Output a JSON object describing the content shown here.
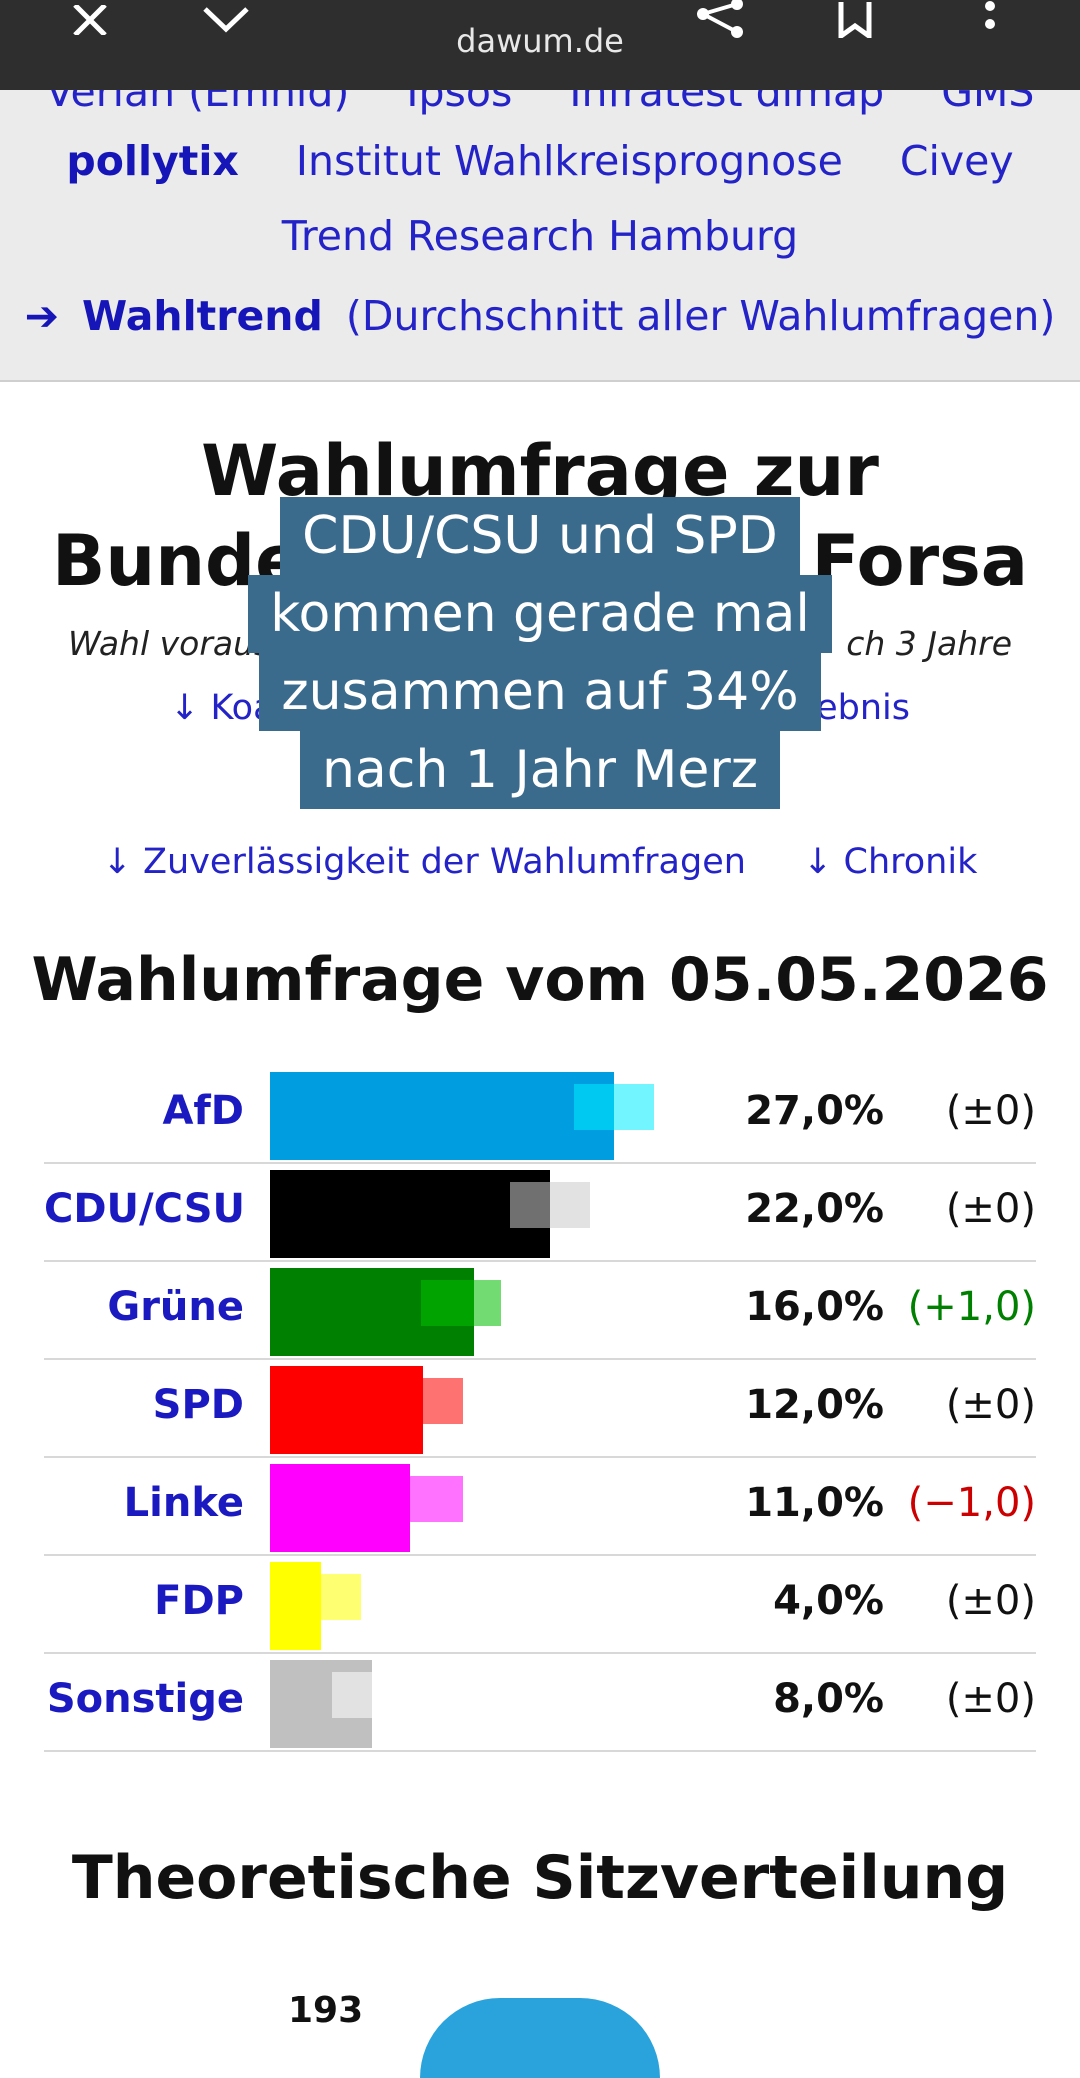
{
  "browser": {
    "url": "dawum.de",
    "icons": [
      "close-icon",
      "download-icon",
      "share-icon",
      "bookmark-icon",
      "more-icon"
    ]
  },
  "institutes": {
    "row0": [
      "Verian (Emnid)",
      "Ipsos",
      "Infratest dimap",
      "GMS"
    ],
    "row1": [
      "pollytix",
      "Institut Wahlkreisprognose",
      "Civey"
    ],
    "row2": [
      "Trend Research Hamburg"
    ],
    "wahltrend_arrow": "➔",
    "wahltrend_label": "Wahltrend",
    "wahltrend_desc": "(Durchschnitt aller Wahlumfragen)"
  },
  "page": {
    "title_line1": "Wahlumfrage zur",
    "title_line2_left": "Bundes",
    "title_line2_right": "Forsa",
    "subtitle_left": "Wahl voraus",
    "subtitle_right": "ch 3 Jahre",
    "nav_left": "↓ Koaliti",
    "nav_right": "gebnis",
    "nav2_left": "↓ Zuverlässigkeit der Wahlumfragen",
    "nav2_right": "↓ Chronik"
  },
  "overlay": {
    "lines": [
      "CDU/CSU und SPD",
      "kommen gerade mal",
      "zusammen auf 34%",
      "nach 1 Jahr Merz"
    ]
  },
  "poll": {
    "heading": "Wahlumfrage vom 05.05.2026",
    "chart_data": {
      "type": "bar",
      "categories": [
        "AfD",
        "CDU/CSU",
        "Grüne",
        "SPD",
        "Linke",
        "FDP",
        "Sonstige"
      ],
      "values": [
        27.0,
        22.0,
        16.0,
        12.0,
        11.0,
        4.0,
        8.0
      ],
      "previous": [
        27.0,
        22.0,
        15.0,
        12.0,
        12.0,
        4.0,
        8.0
      ],
      "percent_labels": [
        "27,0%",
        "22,0%",
        "16,0%",
        "12,0%",
        "11,0%",
        "4,0%",
        "8,0%"
      ],
      "change_labels": [
        "(±0)",
        "(±0)",
        "(+1,0)",
        "(±0)",
        "(−1,0)",
        "(±0)",
        "(±0)"
      ],
      "colors": [
        "#009ee0",
        "#000000",
        "#008000",
        "#ff0000",
        "#ff00ff",
        "#ffff00",
        "#c0c0c0"
      ],
      "change_colors": [
        "#111111",
        "#111111",
        "#008000",
        "#111111",
        "#cc0000",
        "#111111",
        "#111111"
      ]
    }
  },
  "seats": {
    "heading": "Theoretische Sitzverteilung",
    "first_value": "193"
  }
}
